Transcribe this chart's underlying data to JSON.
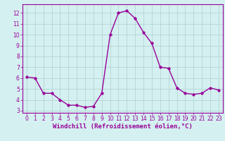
{
  "x": [
    0,
    1,
    2,
    3,
    4,
    5,
    6,
    7,
    8,
    9,
    10,
    11,
    12,
    13,
    14,
    15,
    16,
    17,
    18,
    19,
    20,
    21,
    22,
    23
  ],
  "y": [
    6.1,
    6.0,
    4.6,
    4.6,
    4.0,
    3.5,
    3.5,
    3.3,
    3.4,
    4.6,
    10.0,
    12.0,
    12.2,
    11.5,
    10.2,
    9.2,
    7.0,
    6.9,
    5.1,
    4.6,
    4.5,
    4.6,
    5.1,
    4.9
  ],
  "line_color": "#990099",
  "marker": "D",
  "marker_size": 1.8,
  "bg_color": "#d4f0f0",
  "grid_color": "#b0d0d0",
  "xlabel": "Windchill (Refroidissement éolien,°C)",
  "xlim": [
    -0.5,
    23.5
  ],
  "ylim": [
    2.8,
    12.8
  ],
  "yticks": [
    3,
    4,
    5,
    6,
    7,
    8,
    9,
    10,
    11,
    12
  ],
  "xticks": [
    0,
    1,
    2,
    3,
    4,
    5,
    6,
    7,
    8,
    9,
    10,
    11,
    12,
    13,
    14,
    15,
    16,
    17,
    18,
    19,
    20,
    21,
    22,
    23
  ],
  "tick_label_size": 5.5,
  "xlabel_size": 6.5,
  "line_width": 1.0
}
